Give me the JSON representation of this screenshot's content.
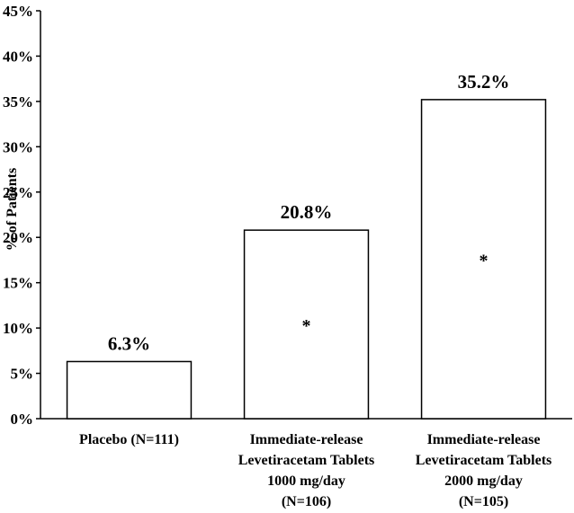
{
  "chart_data": {
    "type": "bar",
    "ylabel": "% of Patients",
    "ylim": [
      0,
      45
    ],
    "y_ticks": [
      "0%",
      "5%",
      "10%",
      "15%",
      "20%",
      "25%",
      "30%",
      "35%",
      "40%",
      "45%"
    ],
    "categories": [
      [
        "Placebo (N=111)"
      ],
      [
        "Immediate-release",
        "Levetiracetam Tablets",
        "1000 mg/day",
        "(N=106)"
      ],
      [
        "Immediate-release",
        "Levetiracetam Tablets",
        "2000 mg/day",
        "(N=105)"
      ]
    ],
    "values": [
      6.3,
      20.8,
      35.2
    ],
    "data_labels": [
      "6.3%",
      "20.8%",
      "35.2%"
    ],
    "significance_markers": [
      "",
      "*",
      "*"
    ],
    "bar_fill": "#ffffff",
    "bar_stroke": "#000000",
    "grid": false
  }
}
